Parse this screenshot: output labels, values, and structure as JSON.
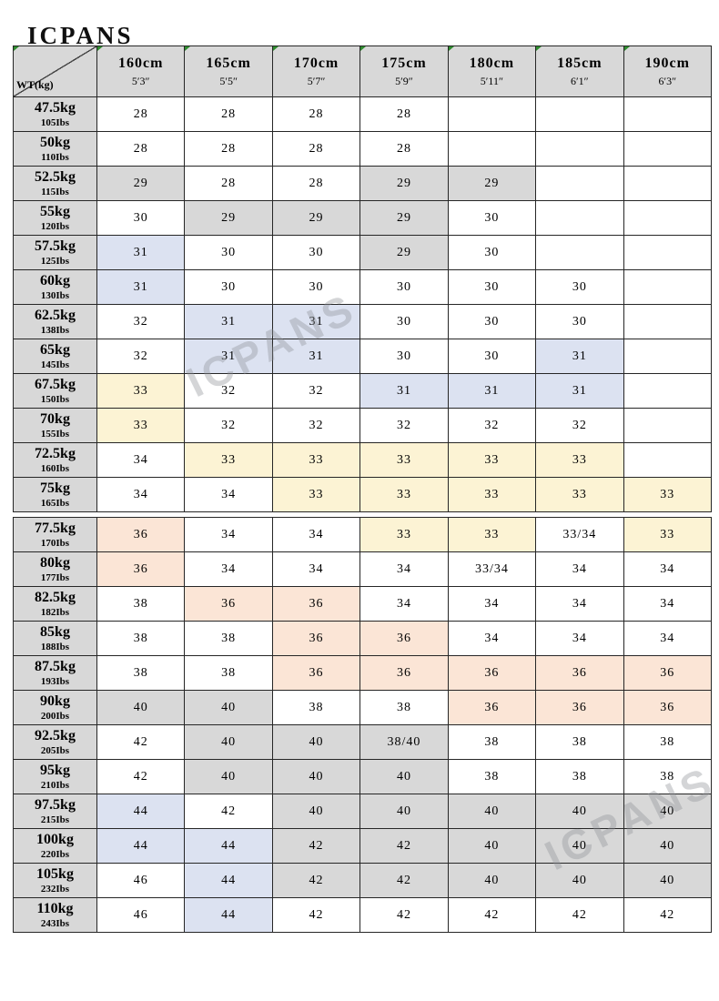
{
  "brand": {
    "logo_text": "ICPANS",
    "watermark_text": "ICPANS"
  },
  "palette": {
    "w": "#ffffff",
    "g": "#d8d8d8",
    "b": "#dce2f1",
    "y": "#fcf3d4",
    "p": "#fbe5d6"
  },
  "chart_data": {
    "type": "table",
    "title": "Jeans size chart by height and weight",
    "corner_label": "WT(kg)",
    "legend_position": "none",
    "grid": true,
    "section_break_after": 11,
    "columns": [
      {
        "cm": "160cm",
        "ft": "5′3″"
      },
      {
        "cm": "165cm",
        "ft": "5′5″"
      },
      {
        "cm": "170cm",
        "ft": "5′7″"
      },
      {
        "cm": "175cm",
        "ft": "5′9″"
      },
      {
        "cm": "180cm",
        "ft": "5′11″"
      },
      {
        "cm": "185cm",
        "ft": "6′1″"
      },
      {
        "cm": "190cm",
        "ft": "6′3″"
      }
    ],
    "rows": [
      {
        "kg": "47.5kg",
        "lbs": "105Ibs",
        "cells": [
          "28|w",
          "28|w",
          "28|w",
          "28|w",
          "|w",
          "|w",
          "|w"
        ]
      },
      {
        "kg": "50kg",
        "lbs": "110Ibs",
        "cells": [
          "28|w",
          "28|w",
          "28|w",
          "28|w",
          "|w",
          "|w",
          "|w"
        ]
      },
      {
        "kg": "52.5kg",
        "lbs": "115Ibs",
        "cells": [
          "29|g",
          "28|w",
          "28|w",
          "29|g",
          "29|g",
          "|w",
          "|w"
        ]
      },
      {
        "kg": "55kg",
        "lbs": "120Ibs",
        "cells": [
          "30|w",
          "29|g",
          "29|g",
          "29|g",
          "30|w",
          "|w",
          "|w"
        ]
      },
      {
        "kg": "57.5kg",
        "lbs": "125Ibs",
        "cells": [
          "31|b",
          "30|w",
          "30|w",
          "29|g",
          "30|w",
          "|w",
          "|w"
        ]
      },
      {
        "kg": "60kg",
        "lbs": "130Ibs",
        "cells": [
          "31|b",
          "30|w",
          "30|w",
          "30|w",
          "30|w",
          "30|w",
          "|w"
        ]
      },
      {
        "kg": "62.5kg",
        "lbs": "138Ibs",
        "cells": [
          "32|w",
          "31|b",
          "31|b",
          "30|w",
          "30|w",
          "30|w",
          "|w"
        ]
      },
      {
        "kg": "65kg",
        "lbs": "145Ibs",
        "cells": [
          "32|w",
          "31|b",
          "31|b",
          "30|w",
          "30|w",
          "31|b",
          "|w"
        ]
      },
      {
        "kg": "67.5kg",
        "lbs": "150Ibs",
        "cells": [
          "33|y",
          "32|w",
          "32|w",
          "31|b",
          "31|b",
          "31|b",
          "|w"
        ]
      },
      {
        "kg": "70kg",
        "lbs": "155Ibs",
        "cells": [
          "33|y",
          "32|w",
          "32|w",
          "32|w",
          "32|w",
          "32|w",
          "|w"
        ]
      },
      {
        "kg": "72.5kg",
        "lbs": "160Ibs",
        "cells": [
          "34|w",
          "33|y",
          "33|y",
          "33|y",
          "33|y",
          "33|y",
          "|w"
        ]
      },
      {
        "kg": "75kg",
        "lbs": "165Ibs",
        "cells": [
          "34|w",
          "34|w",
          "33|y",
          "33|y",
          "33|y",
          "33|y",
          "33|y"
        ]
      },
      {
        "kg": "77.5kg",
        "lbs": "170Ibs",
        "cells": [
          "36|p",
          "34|w",
          "34|w",
          "33|y",
          "33|y",
          "33/34|w",
          "33|y"
        ]
      },
      {
        "kg": "80kg",
        "lbs": "177Ibs",
        "cells": [
          "36|p",
          "34|w",
          "34|w",
          "34|w",
          "33/34|w",
          "34|w",
          "34|w"
        ]
      },
      {
        "kg": "82.5kg",
        "lbs": "182Ibs",
        "cells": [
          "38|w",
          "36|p",
          "36|p",
          "34|w",
          "34|w",
          "34|w",
          "34|w"
        ]
      },
      {
        "kg": "85kg",
        "lbs": "188Ibs",
        "cells": [
          "38|w",
          "38|w",
          "36|p",
          "36|p",
          "34|w",
          "34|w",
          "34|w"
        ]
      },
      {
        "kg": "87.5kg",
        "lbs": "193Ibs",
        "cells": [
          "38|w",
          "38|w",
          "36|p",
          "36|p",
          "36|p",
          "36|p",
          "36|p"
        ]
      },
      {
        "kg": "90kg",
        "lbs": "200Ibs",
        "cells": [
          "40|g",
          "40|g",
          "38|w",
          "38|w",
          "36|p",
          "36|p",
          "36|p"
        ]
      },
      {
        "kg": "92.5kg",
        "lbs": "205Ibs",
        "cells": [
          "42|w",
          "40|g",
          "40|g",
          "38/40|g",
          "38|w",
          "38|w",
          "38|w"
        ]
      },
      {
        "kg": "95kg",
        "lbs": "210Ibs",
        "cells": [
          "42|w",
          "40|g",
          "40|g",
          "40|g",
          "38|w",
          "38|w",
          "38|w"
        ]
      },
      {
        "kg": "97.5kg",
        "lbs": "215Ibs",
        "cells": [
          "44|b",
          "42|w",
          "40|g",
          "40|g",
          "40|g",
          "40|g",
          "40|g"
        ]
      },
      {
        "kg": "100kg",
        "lbs": "220Ibs",
        "cells": [
          "44|b",
          "44|b",
          "42|g",
          "42|g",
          "40|g",
          "40|g",
          "40|g"
        ]
      },
      {
        "kg": "105kg",
        "lbs": "232Ibs",
        "cells": [
          "46|w",
          "44|b",
          "42|g",
          "42|g",
          "40|g",
          "40|g",
          "40|g"
        ]
      },
      {
        "kg": "110kg",
        "lbs": "243Ibs",
        "cells": [
          "46|w",
          "44|b",
          "42|w",
          "42|w",
          "42|w",
          "42|w",
          "42|w"
        ]
      }
    ]
  }
}
